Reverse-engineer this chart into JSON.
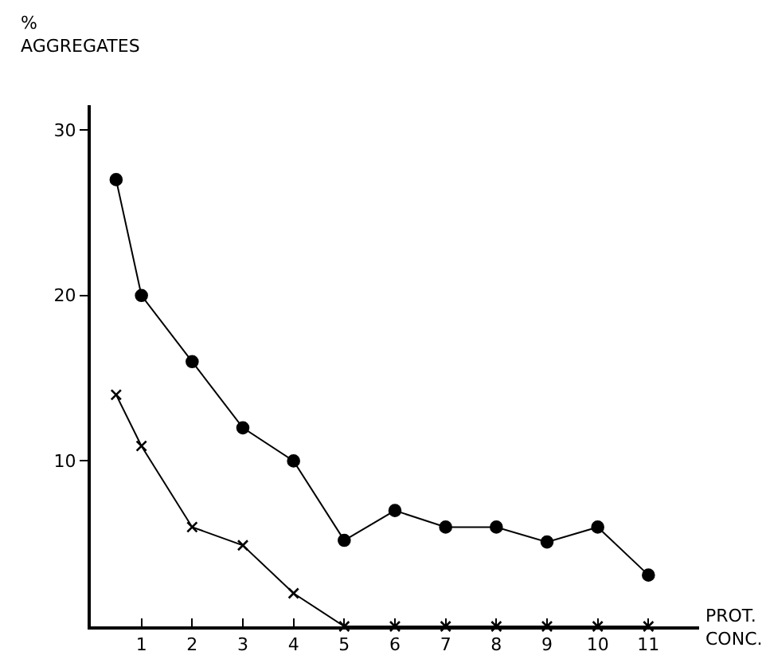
{
  "chart_data": {
    "type": "line",
    "ylabel": "%\nAGGREGATES",
    "xlabel": "PROT.\nCONC.",
    "xlim": [
      0,
      12
    ],
    "xticks": [
      1,
      2,
      3,
      4,
      5,
      6,
      7,
      8,
      9,
      10,
      11
    ],
    "ylim": [
      0,
      31.5
    ],
    "yticks": [
      10,
      20,
      30
    ],
    "grid": false,
    "line_style": "solid",
    "series": [
      {
        "color": "#000000",
        "marker": "circle",
        "x": [
          0.5,
          1,
          2,
          3,
          4,
          5,
          6,
          7,
          8,
          9,
          10,
          11
        ],
        "values": [
          27,
          20,
          16,
          12,
          10,
          5.2,
          7,
          6,
          6,
          5.1,
          6,
          3.1
        ]
      },
      {
        "color": "#000000",
        "marker": "cross",
        "x": [
          0.5,
          1,
          2,
          3,
          4,
          5,
          6,
          7,
          8,
          9,
          10,
          11
        ],
        "values": [
          14,
          10.9,
          6,
          4.9,
          2,
          0,
          0,
          0,
          0,
          0,
          0,
          0
        ]
      }
    ]
  }
}
